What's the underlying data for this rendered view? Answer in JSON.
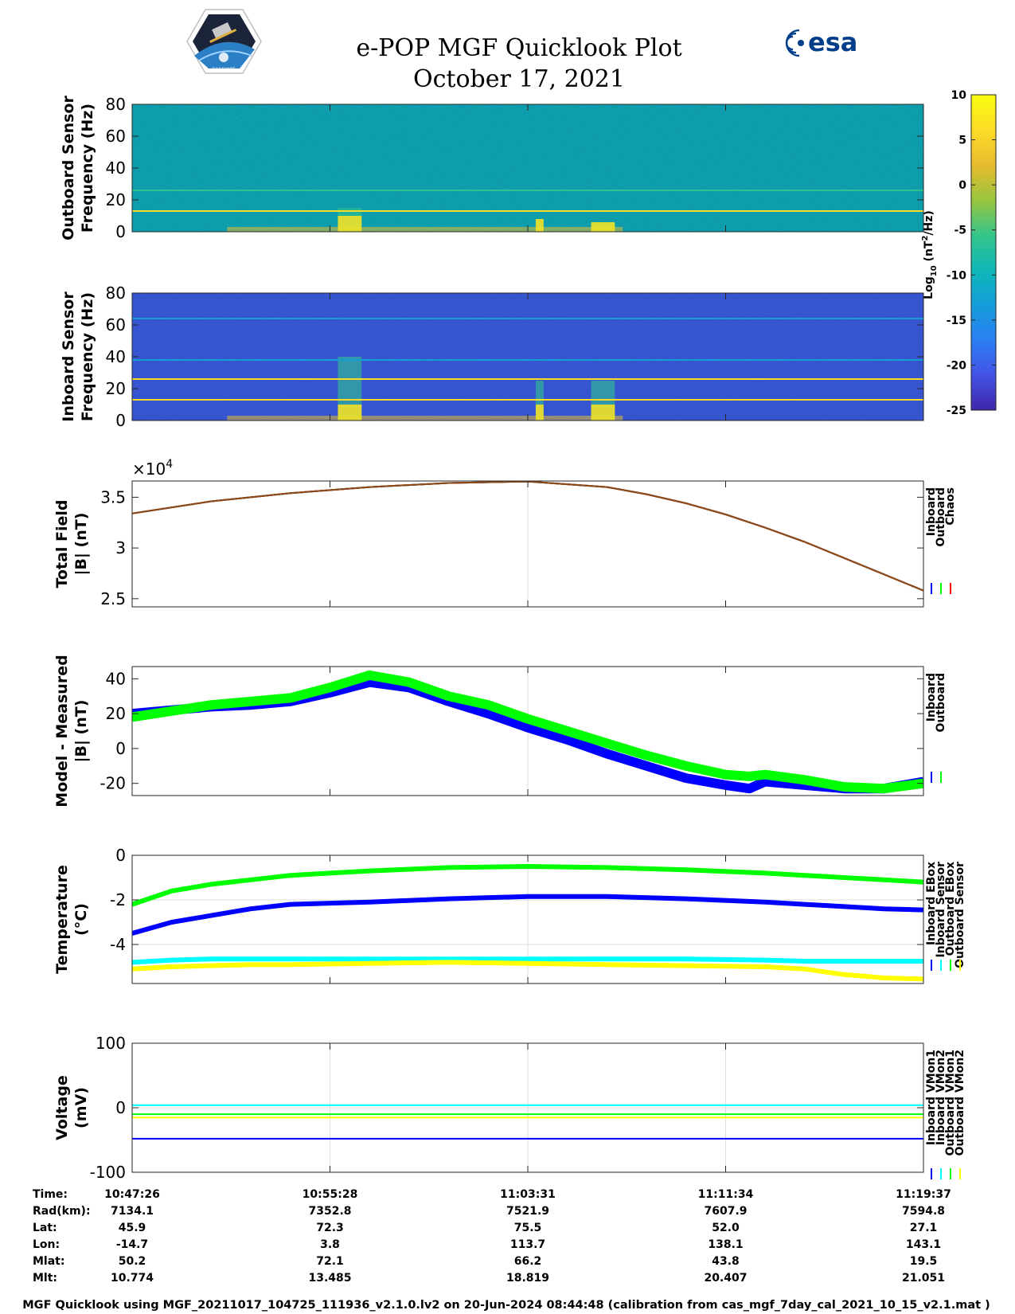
{
  "header": {
    "title": "e-POP MGF Quicklook Plot",
    "date": "October 17, 2021",
    "logo_left": "CASSIOPE",
    "logo_right": "esa"
  },
  "colorbar": {
    "label_base": "Log",
    "label_sub": "10",
    "label_unit": "(nT",
    "label_sup": "2",
    "label_tail": "/Hz)",
    "ticks": [
      10,
      5,
      0,
      -5,
      -10,
      -15,
      -20,
      -25
    ],
    "range": [
      -25,
      10
    ],
    "colors": [
      "#3e26a8",
      "#4353e6",
      "#2c7ef2",
      "#149dd9",
      "#0eb7b8",
      "#36c58a",
      "#99c53e",
      "#e7bb2e",
      "#fddc27",
      "#f9fb0e"
    ]
  },
  "x_time_ticks": [
    "10:47:26",
    "10:55:28",
    "11:03:31",
    "11:11:34",
    "11:19:37"
  ],
  "chart_data": [
    {
      "type": "heatmap",
      "name": "outboard-spectrogram",
      "ylabel1": "Outboard Sensor",
      "ylabel2": "Frequency (Hz)",
      "ylim": [
        0,
        80
      ],
      "yticks": [
        0,
        20,
        40,
        60,
        80
      ],
      "background_log10": -10.5,
      "lines_hz": [
        {
          "freq": 13,
          "log10": 6
        },
        {
          "freq": 26,
          "log10": -6
        }
      ],
      "bursts": [
        {
          "t0": 0.26,
          "t1": 0.29,
          "fmax": 15
        },
        {
          "t0": 0.51,
          "t1": 0.52,
          "fmax": 8
        },
        {
          "t0": 0.58,
          "t1": 0.61,
          "fmax": 6
        }
      ]
    },
    {
      "type": "heatmap",
      "name": "inboard-spectrogram",
      "ylabel1": "Inboard Sensor",
      "ylabel2": "Frequency (Hz)",
      "ylim": [
        0,
        80
      ],
      "yticks": [
        0,
        20,
        40,
        60,
        80
      ],
      "background_log10": -20,
      "lines_hz": [
        {
          "freq": 13,
          "log10": 6
        },
        {
          "freq": 26,
          "log10": 6
        },
        {
          "freq": 38,
          "log10": -13
        },
        {
          "freq": 64,
          "log10": -13
        }
      ],
      "bursts": [
        {
          "t0": 0.26,
          "t1": 0.29,
          "fmax": 40
        },
        {
          "t0": 0.51,
          "t1": 0.52,
          "fmax": 25
        },
        {
          "t0": 0.58,
          "t1": 0.61,
          "fmax": 25
        }
      ]
    },
    {
      "type": "line",
      "name": "total-field",
      "ylabel1": "Total Field",
      "ylabel2": "|B| (nT)",
      "multiplier": "×10",
      "multiplier_exp": "4",
      "ylim": [
        2.42,
        3.66
      ],
      "yticks": [
        2.5,
        3,
        3.5
      ],
      "x": [
        0,
        0.1,
        0.2,
        0.3,
        0.4,
        0.5,
        0.6,
        0.65,
        0.7,
        0.75,
        0.8,
        0.85,
        0.9,
        0.95,
        1.0
      ],
      "series": [
        {
          "name": "Inboard",
          "color": "#0000ff",
          "values": [
            3.34,
            3.46,
            3.54,
            3.6,
            3.64,
            3.655,
            3.6,
            3.53,
            3.44,
            3.33,
            3.2,
            3.06,
            2.9,
            2.74,
            2.58
          ]
        },
        {
          "name": "Outboard",
          "color": "#00ff00",
          "values": [
            3.34,
            3.46,
            3.54,
            3.6,
            3.64,
            3.655,
            3.6,
            3.53,
            3.44,
            3.33,
            3.2,
            3.06,
            2.9,
            2.74,
            2.58
          ]
        },
        {
          "name": "Chaos",
          "color": "#ff0000",
          "values": [
            3.34,
            3.46,
            3.54,
            3.6,
            3.64,
            3.655,
            3.6,
            3.53,
            3.44,
            3.33,
            3.2,
            3.06,
            2.9,
            2.74,
            2.58
          ]
        }
      ]
    },
    {
      "type": "line",
      "name": "model-minus-measured",
      "ylabel1": "Model - Measured",
      "ylabel2": "|B| (nT)",
      "ylim": [
        -27,
        47
      ],
      "yticks": [
        -20,
        0,
        20,
        40
      ],
      "x": [
        0,
        0.1,
        0.15,
        0.2,
        0.25,
        0.3,
        0.35,
        0.4,
        0.45,
        0.5,
        0.55,
        0.6,
        0.65,
        0.7,
        0.75,
        0.78,
        0.8,
        0.85,
        0.9,
        0.95,
        1.0
      ],
      "series": [
        {
          "name": "Inboard",
          "color": "#0000ff",
          "width": 12,
          "values": [
            20,
            24,
            25,
            27,
            32,
            38,
            35,
            27,
            20,
            12,
            5,
            -3,
            -10,
            -17,
            -21,
            -23,
            -19,
            -21,
            -23,
            -23,
            -19
          ]
        },
        {
          "name": "Outboard",
          "color": "#00ff00",
          "width": 12,
          "values": [
            18,
            25,
            27,
            29,
            35,
            42,
            38,
            30,
            25,
            17,
            10,
            3,
            -4,
            -10,
            -15,
            -16,
            -15,
            -18,
            -22,
            -23,
            -20
          ]
        }
      ]
    },
    {
      "type": "line",
      "name": "temperature",
      "ylabel1": "Temperature",
      "ylabel2": "(°C)",
      "ylim": [
        -5.75,
        0
      ],
      "yticks": [
        -4,
        -2,
        0
      ],
      "x": [
        0,
        0.05,
        0.1,
        0.15,
        0.2,
        0.3,
        0.4,
        0.5,
        0.6,
        0.7,
        0.8,
        0.85,
        0.9,
        0.95,
        1.0
      ],
      "series": [
        {
          "name": "Inboard EBox",
          "color": "#0000ff",
          "values": [
            -3.5,
            -3.0,
            -2.7,
            -2.4,
            -2.2,
            -2.1,
            -1.95,
            -1.85,
            -1.85,
            -1.95,
            -2.1,
            -2.2,
            -2.3,
            -2.4,
            -2.45
          ]
        },
        {
          "name": "Inboard Sensor",
          "color": "#00ffff",
          "values": [
            -4.8,
            -4.7,
            -4.65,
            -4.65,
            -4.65,
            -4.65,
            -4.65,
            -4.65,
            -4.65,
            -4.65,
            -4.7,
            -4.75,
            -4.75,
            -4.75,
            -4.75
          ]
        },
        {
          "name": "Outboard EBox",
          "color": "#00ff00",
          "values": [
            -2.2,
            -1.6,
            -1.3,
            -1.1,
            -0.9,
            -0.7,
            -0.55,
            -0.5,
            -0.55,
            -0.65,
            -0.8,
            -0.9,
            -1.0,
            -1.1,
            -1.2
          ]
        },
        {
          "name": "Outboard Sensor",
          "color": "#ffff00",
          "values": [
            -5.1,
            -5.0,
            -4.95,
            -4.9,
            -4.9,
            -4.85,
            -4.8,
            -4.85,
            -4.9,
            -4.95,
            -5.0,
            -5.1,
            -5.35,
            -5.5,
            -5.55
          ]
        }
      ]
    },
    {
      "type": "line",
      "name": "voltage",
      "ylabel1": "Voltage",
      "ylabel2": "(mV)",
      "ylim": [
        -100,
        100
      ],
      "yticks": [
        -100,
        0,
        100
      ],
      "x": [
        0,
        1
      ],
      "series": [
        {
          "name": "Inboard VMon1",
          "color": "#0000ff",
          "values": [
            -48,
            -48
          ]
        },
        {
          "name": "Inboard VMon2",
          "color": "#00ffff",
          "values": [
            4,
            4
          ]
        },
        {
          "name": "Outboard VMon1",
          "color": "#00ff00",
          "values": [
            -10,
            -10
          ]
        },
        {
          "name": "Outboard VMon2",
          "color": "#ffff00",
          "values": [
            -15,
            -15
          ]
        }
      ]
    }
  ],
  "ephemeris": {
    "labels": [
      "Time:",
      "Rad(km):",
      "Lat:",
      "Lon:",
      "Mlat:",
      "Mlt:"
    ],
    "columns": [
      [
        "10:47:26",
        "7134.1",
        "45.9",
        "-14.7",
        "50.2",
        "10.774"
      ],
      [
        "10:55:28",
        "7352.8",
        "72.3",
        "3.8",
        "72.1",
        "13.485"
      ],
      [
        "11:03:31",
        "7521.9",
        "75.5",
        "113.7",
        "66.2",
        "18.819"
      ],
      [
        "11:11:34",
        "7607.9",
        "52.0",
        "138.1",
        "43.8",
        "20.407"
      ],
      [
        "11:19:37",
        "7594.8",
        "27.1",
        "143.1",
        "19.5",
        "21.051"
      ]
    ]
  },
  "footer": "MGF Quicklook using MGF_20211017_104725_111936_v2.1.0.lv2 on 20-Jun-2024 08:44:48 (calibration from cas_mgf_7day_cal_2021_10_15_v2.1.mat )"
}
